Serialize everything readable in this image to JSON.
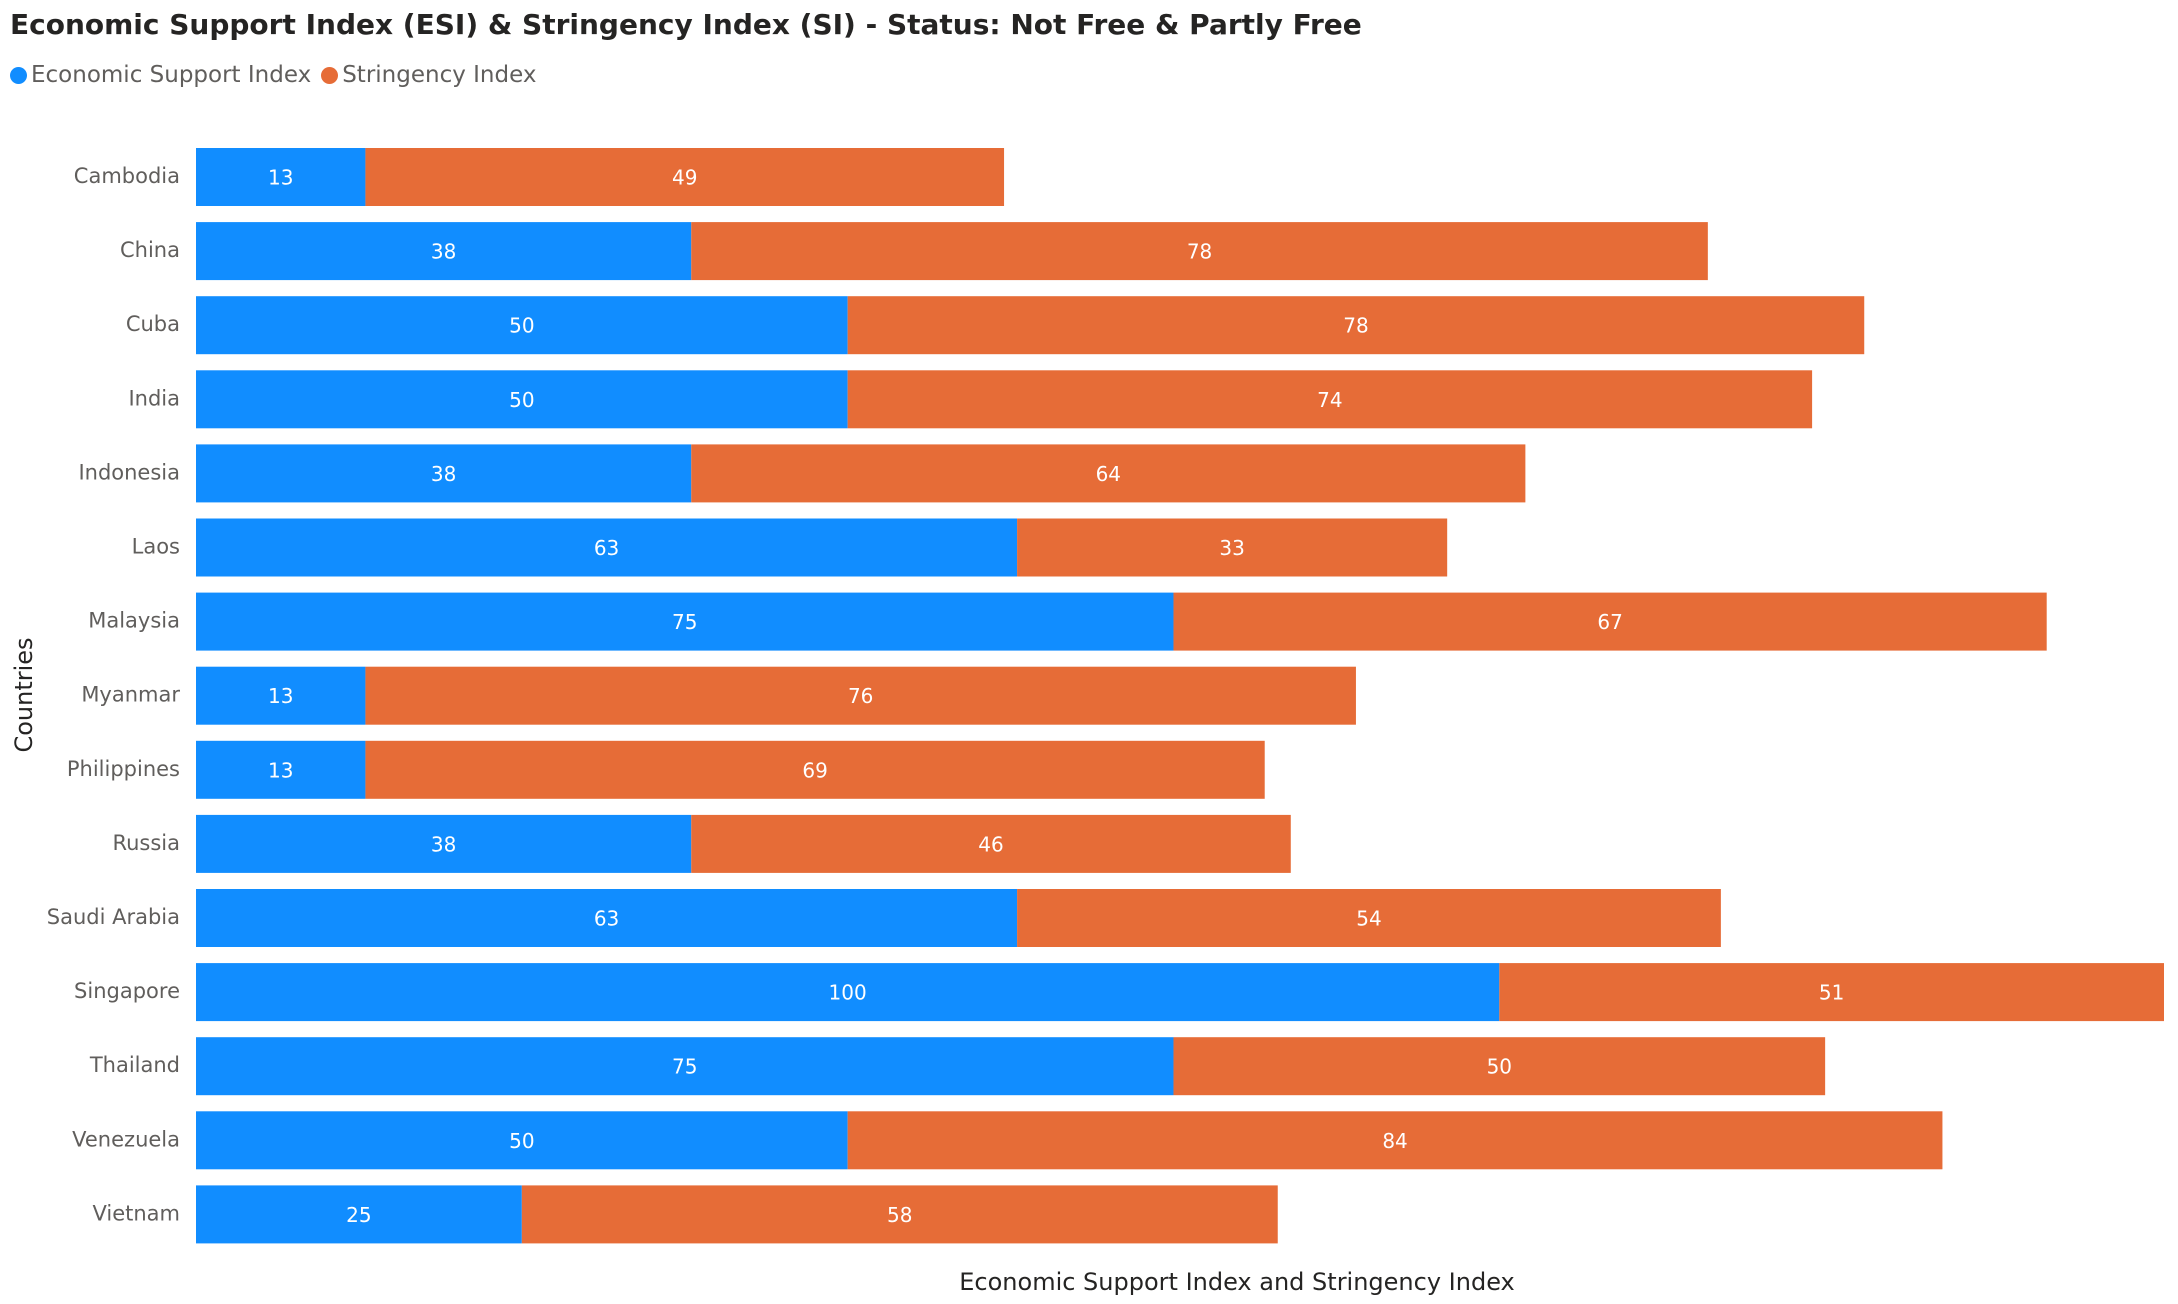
{
  "chart_data": {
    "type": "bar",
    "orientation": "horizontal",
    "stacked": true,
    "title": "Economic Support Index (ESI) & Stringency Index (SI) - Status: Not Free & Partly Free",
    "xlabel": "Economic Support Index and Stringency Index",
    "ylabel": "Countries",
    "legend_position": "top-left",
    "grid": false,
    "categories": [
      "Cambodia",
      "China",
      "Cuba",
      "India",
      "Indonesia",
      "Laos",
      "Malaysia",
      "Myanmar",
      "Philippines",
      "Russia",
      "Saudi Arabia",
      "Singapore",
      "Thailand",
      "Venezuela",
      "Vietnam"
    ],
    "series": [
      {
        "name": "Economic Support Index",
        "color": "#118DFF",
        "values": [
          13,
          38,
          50,
          50,
          38,
          63,
          75,
          13,
          13,
          38,
          63,
          100,
          75,
          50,
          25
        ]
      },
      {
        "name": "Stringency Index",
        "color": "#E66C37",
        "values": [
          49,
          78,
          78,
          74,
          64,
          33,
          67,
          76,
          69,
          46,
          54,
          51,
          50,
          84,
          58
        ]
      }
    ],
    "xlim": [
      0,
      151
    ]
  }
}
